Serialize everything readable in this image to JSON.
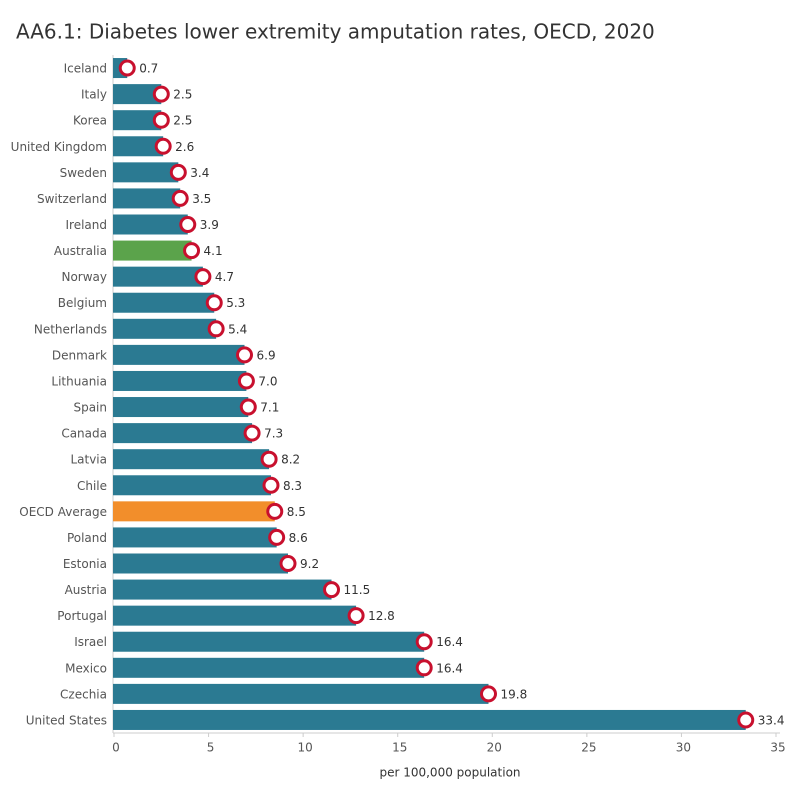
{
  "chart_data": {
    "type": "bar",
    "orientation": "horizontal",
    "title": "AA6.1: Diabetes lower extremity amputation rates, OECD, 2020",
    "categories": [
      "Iceland",
      "Italy",
      "Korea",
      "United Kingdom",
      "Sweden",
      "Switzerland",
      "Ireland",
      "Australia",
      "Norway",
      "Belgium",
      "Netherlands",
      "Denmark",
      "Lithuania",
      "Spain",
      "Canada",
      "Latvia",
      "Chile",
      "OECD Average",
      "Poland",
      "Estonia",
      "Austria",
      "Portugal",
      "Israel",
      "Mexico",
      "Czechia",
      "United States"
    ],
    "values": [
      0.7,
      2.5,
      2.5,
      2.6,
      3.4,
      3.5,
      3.9,
      4.1,
      4.7,
      5.3,
      5.4,
      6.9,
      7.0,
      7.1,
      7.3,
      8.2,
      8.3,
      8.5,
      8.6,
      9.2,
      11.5,
      12.8,
      16.4,
      16.4,
      19.8,
      33.4
    ],
    "value_labels": [
      "0.7",
      "2.5",
      "2.5",
      "2.6",
      "3.4",
      "3.5",
      "3.9",
      "4.1",
      "4.7",
      "5.3",
      "5.4",
      "6.9",
      "7.0",
      "7.1",
      "7.3",
      "8.2",
      "8.3",
      "8.5",
      "8.6",
      "9.2",
      "11.5",
      "12.8",
      "16.4",
      "16.4",
      "19.8",
      "33.4"
    ],
    "colors": [
      "#2b7a92",
      "#2b7a92",
      "#2b7a92",
      "#2b7a92",
      "#2b7a92",
      "#2b7a92",
      "#2b7a92",
      "#5ba34b",
      "#2b7a92",
      "#2b7a92",
      "#2b7a92",
      "#2b7a92",
      "#2b7a92",
      "#2b7a92",
      "#2b7a92",
      "#2b7a92",
      "#2b7a92",
      "#f28e2b",
      "#2b7a92",
      "#2b7a92",
      "#2b7a92",
      "#2b7a92",
      "#2b7a92",
      "#2b7a92",
      "#2b7a92",
      "#2b7a92"
    ],
    "xlim": [
      0,
      35
    ],
    "xticks": [
      0,
      5,
      10,
      15,
      20,
      25,
      30,
      35
    ],
    "xlabel": "per 100,000 population"
  }
}
